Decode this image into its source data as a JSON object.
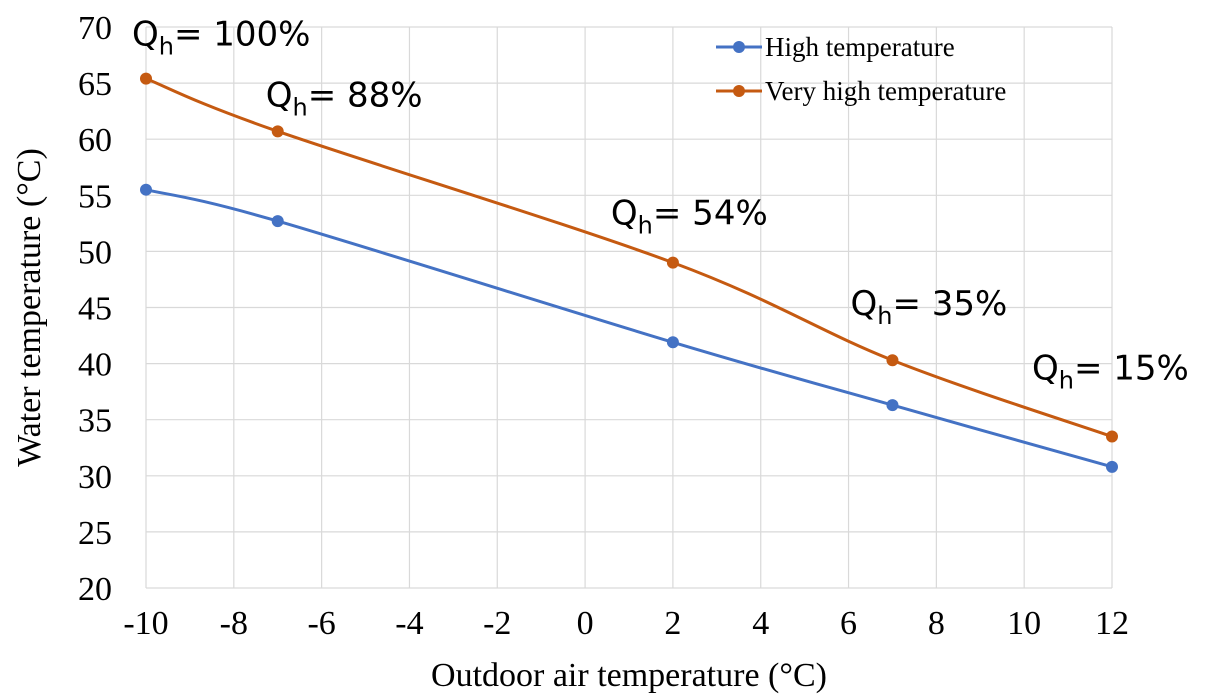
{
  "chart_data": {
    "type": "line",
    "xlabel": "Outdoor air temperature (°C)",
    "ylabel": "Water temperature (°C)",
    "xlim": [
      -10,
      12
    ],
    "ylim": [
      20,
      70
    ],
    "x_ticks": [
      "-10",
      "-8",
      "-6",
      "-4",
      "-2",
      "0",
      "2",
      "4",
      "6",
      "8",
      "10",
      "12"
    ],
    "y_ticks": [
      "20",
      "25",
      "30",
      "35",
      "40",
      "45",
      "50",
      "55",
      "60",
      "65",
      "70"
    ],
    "grid": "vertical",
    "smooth": true,
    "legend_position": "top-right",
    "series": [
      {
        "name": "High temperature",
        "color": "#4472C4",
        "x": [
          -10,
          -7,
          2,
          7,
          12
        ],
        "y": [
          55.5,
          52.7,
          41.9,
          36.3,
          30.8
        ]
      },
      {
        "name": "Very high temperature",
        "color": "#C55A11",
        "x": [
          -10,
          -7,
          2,
          7,
          12
        ],
        "y": [
          65.4,
          60.7,
          49.0,
          40.3,
          33.5
        ]
      }
    ],
    "annotations": [
      {
        "symbol": "Q",
        "sub": "h",
        "text": "= 100%",
        "series": 1,
        "index": 0
      },
      {
        "symbol": "Q",
        "sub": "h",
        "text": "= 88%",
        "series": 1,
        "index": 1
      },
      {
        "symbol": "Q",
        "sub": "h",
        "text": "= 54%",
        "series": 1,
        "index": 2
      },
      {
        "symbol": "Q",
        "sub": "h",
        "text": "= 35%",
        "series": 1,
        "index": 3
      },
      {
        "symbol": "Q",
        "sub": "h",
        "text": "= 15%",
        "series": 1,
        "index": 4
      }
    ]
  }
}
